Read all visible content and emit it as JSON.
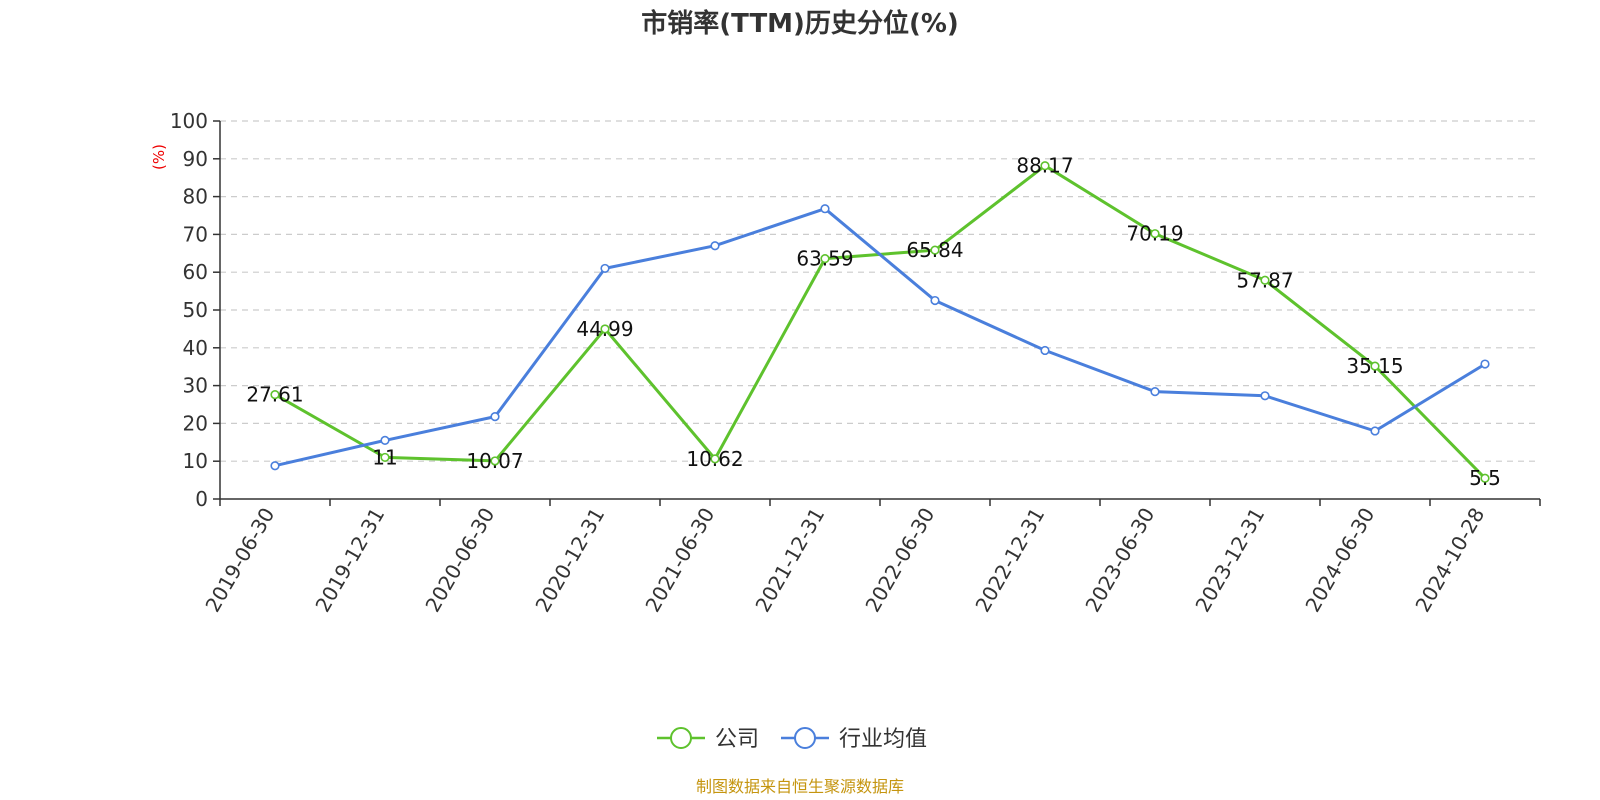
{
  "chart_data": {
    "type": "line",
    "title": "市销率(TTM)历史分位(%)",
    "ylabel": "(%)",
    "ylim": [
      0,
      100
    ],
    "yticks": [
      0,
      10,
      20,
      30,
      40,
      50,
      60,
      70,
      80,
      90,
      100
    ],
    "grid": "horizontal-dashed",
    "legend": "bottom-center",
    "categories": [
      "2019-06-30",
      "2019-12-31",
      "2020-06-30",
      "2020-12-31",
      "2021-06-30",
      "2021-12-31",
      "2022-06-30",
      "2022-12-31",
      "2023-06-30",
      "2023-12-31",
      "2024-06-30",
      "2024-10-28"
    ],
    "series": [
      {
        "name": "公司",
        "color": "#5ec22d",
        "values": [
          27.61,
          11,
          10.07,
          44.99,
          10.62,
          63.59,
          65.84,
          88.17,
          70.19,
          57.87,
          35.15,
          5.5
        ],
        "data_labels": [
          "27.61",
          "11",
          "10.07",
          "44.99",
          "10.62",
          "63.59",
          "65.84",
          "88.17",
          "70.19",
          "57.87",
          "35.15",
          "5.5"
        ]
      },
      {
        "name": "行业均值",
        "color": "#4a7fdc",
        "values": [
          8.8,
          15.5,
          21.8,
          61,
          67,
          76.8,
          52.5,
          39.3,
          28.4,
          27.3,
          18,
          35.7
        ]
      }
    ],
    "source": "制图数据来自恒生聚源数据库"
  }
}
